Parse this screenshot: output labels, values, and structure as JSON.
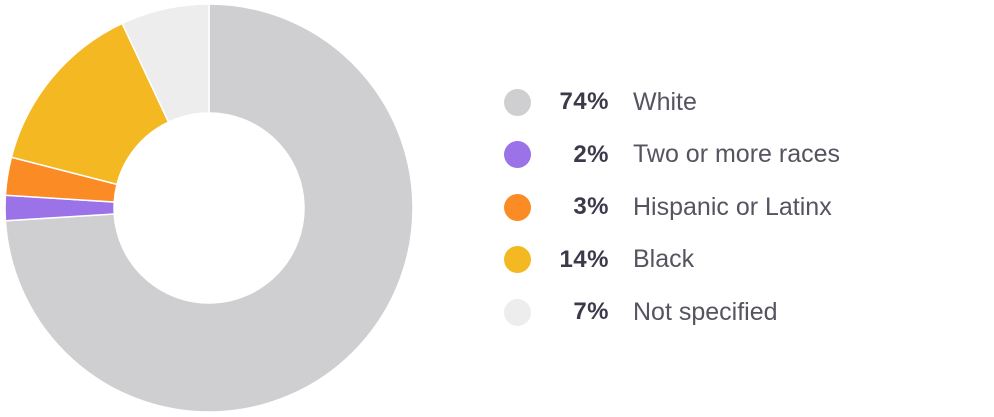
{
  "chart_data": {
    "type": "pie",
    "donut": true,
    "categories": [
      "White",
      "Two or more races",
      "Hispanic or Latinx",
      "Black",
      "Not specified"
    ],
    "values": [
      74,
      2,
      3,
      14,
      7
    ],
    "value_labels": [
      "74%",
      "2%",
      "3%",
      "14%",
      "7%"
    ],
    "colors": [
      "#cfcfd1",
      "#9b72e8",
      "#fb8b24",
      "#f4b822",
      "#ededed"
    ],
    "legend_position": "right"
  }
}
